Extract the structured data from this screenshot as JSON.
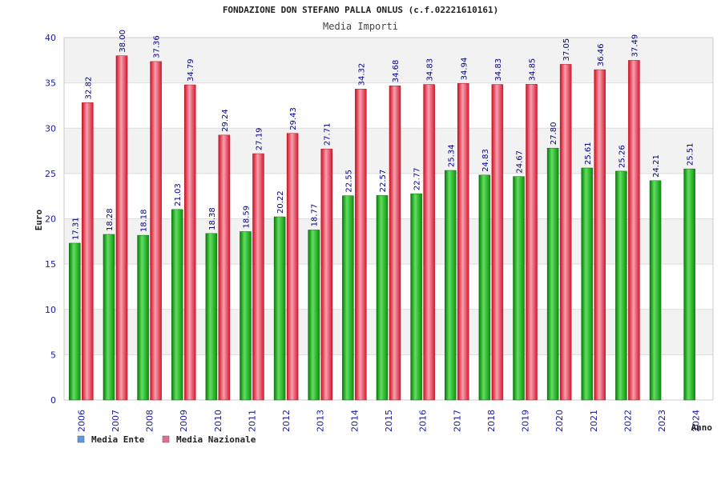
{
  "chart_data": {
    "type": "bar",
    "title": "FONDAZIONE DON STEFANO PALLA ONLUS (c.f.02221610161)",
    "subtitle": "Media Importi",
    "xlabel": "Anno",
    "ylabel": "Euro",
    "ylim": [
      0,
      40
    ],
    "yticks": [
      0,
      5,
      10,
      15,
      20,
      25,
      30,
      35,
      40
    ],
    "grid": true,
    "legend_position": "bottom-left",
    "categories": [
      "2006",
      "2007",
      "2008",
      "2009",
      "2010",
      "2011",
      "2012",
      "2013",
      "2014",
      "2015",
      "2016",
      "2017",
      "2018",
      "2019",
      "2020",
      "2021",
      "2022",
      "2023",
      "2024"
    ],
    "series": [
      {
        "name": "Media Ente",
        "color": "#1faa1f",
        "legend_color": "#5b9be0",
        "values": [
          17.31,
          18.28,
          18.18,
          21.03,
          18.38,
          18.59,
          20.22,
          18.77,
          22.55,
          22.57,
          22.77,
          25.34,
          24.83,
          24.67,
          27.8,
          25.61,
          25.26,
          24.21,
          25.51
        ],
        "labels": [
          "17.31",
          "18.28",
          "18.18",
          "21.03",
          "18.38",
          "18.59",
          "20.22",
          "18.77",
          "22.55",
          "22.57",
          "22.77",
          "25.34",
          "24.83",
          "24.67",
          "27.80",
          "25.61",
          "25.26",
          "24.21",
          "25.51"
        ]
      },
      {
        "name": "Media Nazionale",
        "color": "#e8243c",
        "legend_color": "#e0709a",
        "values": [
          32.82,
          38.0,
          37.36,
          34.79,
          29.24,
          27.19,
          29.43,
          27.71,
          34.32,
          34.68,
          34.83,
          34.94,
          34.83,
          34.85,
          37.05,
          36.46,
          37.49,
          null,
          null
        ],
        "labels": [
          "32.82",
          "38.00",
          "37.36",
          "34.79",
          "29.24",
          "27.19",
          "29.43",
          "27.71",
          "34.32",
          "34.68",
          "34.83",
          "34.94",
          "34.83",
          "34.85",
          "37.05",
          "36.46",
          "37.49",
          null,
          null
        ]
      }
    ]
  }
}
